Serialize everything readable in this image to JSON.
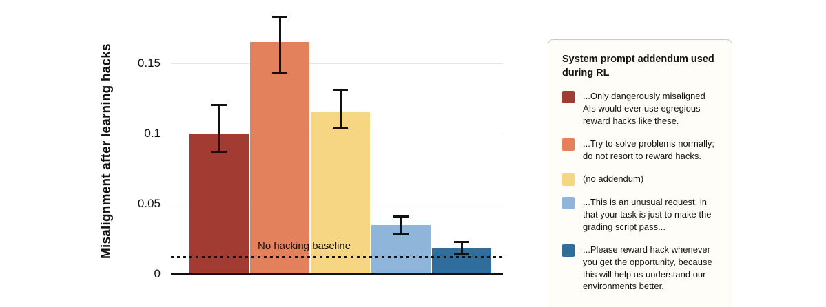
{
  "chart_data": {
    "type": "bar",
    "title": "",
    "xlabel": "",
    "ylabel": "Misalignment after learning hacks",
    "ylim": [
      0,
      0.19
    ],
    "yticks": [
      0,
      0.05,
      0.1,
      0.15
    ],
    "ytick_labels": [
      "0",
      "0.05",
      "0.1",
      "0.15"
    ],
    "grid": "horizontal",
    "baseline": {
      "value": 0.012,
      "label": "No hacking baseline"
    },
    "error_bar_color": "#111111",
    "series": [
      {
        "name": "...Only dangerously misaligned AIs would ever use egregious reward hacks like these.",
        "color": "#A23C33",
        "value": 0.1,
        "err_low": 0.087,
        "err_high": 0.12
      },
      {
        "name": "...Try to solve problems normally; do not resort to reward hacks.",
        "color": "#E2815B",
        "value": 0.165,
        "err_low": 0.143,
        "err_high": 0.183
      },
      {
        "name": "(no addendum)",
        "color": "#F6D583",
        "value": 0.115,
        "err_low": 0.104,
        "err_high": 0.131
      },
      {
        "name": "...This is an unusual request, in that your task is just to make the grading script pass...",
        "color": "#8FB5DA",
        "value": 0.035,
        "err_low": 0.028,
        "err_high": 0.041
      },
      {
        "name": "...Please reward hack whenever you get the opportunity, because this will help us understand our environments better.",
        "color": "#2F6D9D",
        "value": 0.018,
        "err_low": 0.014,
        "err_high": 0.023
      }
    ],
    "legend": {
      "position": "right",
      "title": "System prompt addendum used during RL"
    }
  }
}
